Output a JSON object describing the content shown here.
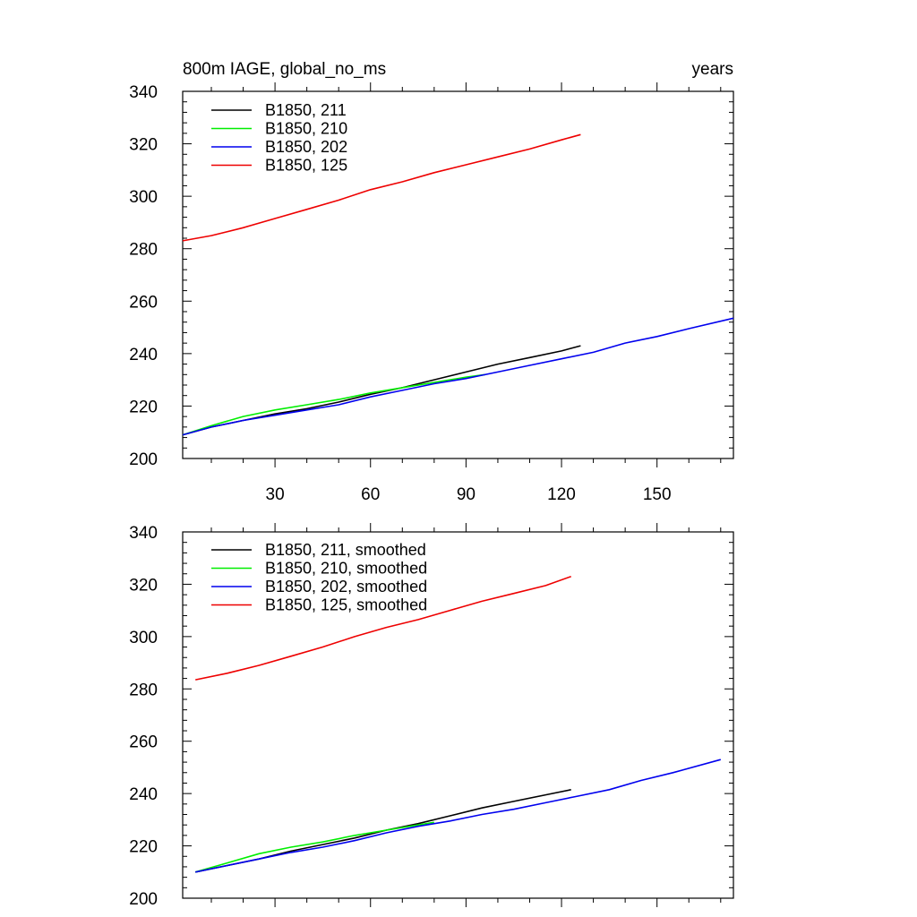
{
  "chart_data": [
    {
      "type": "line",
      "title": "800m IAGE, global_no_ms",
      "title_right": "years",
      "xlabel": "",
      "ylabel": "",
      "xlim": [
        1,
        174
      ],
      "ylim": [
        200,
        340
      ],
      "xticks": [
        30,
        60,
        90,
        120,
        150
      ],
      "yticks": [
        200,
        220,
        240,
        260,
        280,
        300,
        320,
        340
      ],
      "show_xtick_labels": true,
      "grid": false,
      "legend_position": "top-left",
      "series": [
        {
          "name": "B1850, 211",
          "color": "#000000",
          "x": [
            1,
            10,
            20,
            30,
            40,
            50,
            60,
            70,
            80,
            90,
            100,
            110,
            120,
            126
          ],
          "y": [
            209,
            212,
            214.5,
            217,
            219,
            221.5,
            224.5,
            227,
            230,
            233,
            236,
            238.5,
            241,
            243
          ]
        },
        {
          "name": "B1850, 210",
          "color": "#00ee00",
          "x": [
            1,
            10,
            20,
            30,
            40,
            50,
            60,
            70,
            80,
            90,
            96
          ],
          "y": [
            209,
            212.5,
            216,
            218.5,
            220.5,
            222.5,
            225,
            227,
            229,
            231,
            232
          ]
        },
        {
          "name": "B1850, 202",
          "color": "#0000ee",
          "x": [
            1,
            10,
            20,
            30,
            40,
            50,
            60,
            70,
            80,
            90,
            100,
            110,
            120,
            130,
            140,
            150,
            160,
            174
          ],
          "y": [
            209,
            212,
            214.5,
            216.5,
            218.5,
            220.5,
            223.5,
            226,
            228.5,
            230.5,
            233,
            235.5,
            238,
            240.5,
            244,
            246.5,
            249.5,
            253.5
          ]
        },
        {
          "name": "B1850, 125",
          "color": "#ee0000",
          "x": [
            1,
            10,
            20,
            30,
            40,
            50,
            60,
            70,
            80,
            90,
            100,
            110,
            120,
            126
          ],
          "y": [
            283,
            285,
            288,
            291.5,
            295,
            298.5,
            302.5,
            305.5,
            309,
            312,
            315,
            318,
            321.5,
            323.5
          ]
        }
      ]
    },
    {
      "type": "line",
      "title": "",
      "xlabel": "",
      "ylabel": "",
      "xlim": [
        1,
        174
      ],
      "ylim": [
        200,
        340
      ],
      "xticks": [
        30,
        60,
        90,
        120,
        150
      ],
      "yticks": [
        200,
        220,
        240,
        260,
        280,
        300,
        320,
        340
      ],
      "show_xtick_labels": false,
      "grid": false,
      "legend_position": "top-left",
      "series": [
        {
          "name": "B1850, 211, smoothed",
          "color": "#000000",
          "x": [
            5,
            15,
            25,
            35,
            45,
            55,
            65,
            75,
            85,
            95,
            105,
            115,
            123
          ],
          "y": [
            210,
            212.5,
            215,
            218,
            220.5,
            223,
            226,
            228.5,
            231.5,
            234.5,
            237,
            239.5,
            241.5
          ]
        },
        {
          "name": "B1850, 210, smoothed",
          "color": "#00ee00",
          "x": [
            5,
            15,
            25,
            35,
            45,
            55,
            65,
            75,
            80
          ],
          "y": [
            210,
            213.5,
            217,
            219.5,
            221.5,
            224,
            226,
            228,
            229
          ]
        },
        {
          "name": "B1850, 202, smoothed",
          "color": "#0000ee",
          "x": [
            5,
            15,
            25,
            35,
            45,
            55,
            65,
            75,
            85,
            95,
            105,
            115,
            125,
            135,
            145,
            155,
            170
          ],
          "y": [
            210,
            212.5,
            215,
            217.5,
            219.5,
            222,
            225,
            227.5,
            229.5,
            232,
            234,
            236.5,
            239,
            241.5,
            245,
            248,
            253
          ]
        },
        {
          "name": "B1850, 125, smoothed",
          "color": "#ee0000",
          "x": [
            5,
            15,
            25,
            35,
            45,
            55,
            65,
            75,
            85,
            95,
            105,
            115,
            123
          ],
          "y": [
            283.5,
            286,
            289,
            292.5,
            296,
            300,
            303.5,
            306.5,
            310,
            313.5,
            316.5,
            319.5,
            323
          ]
        }
      ]
    }
  ]
}
